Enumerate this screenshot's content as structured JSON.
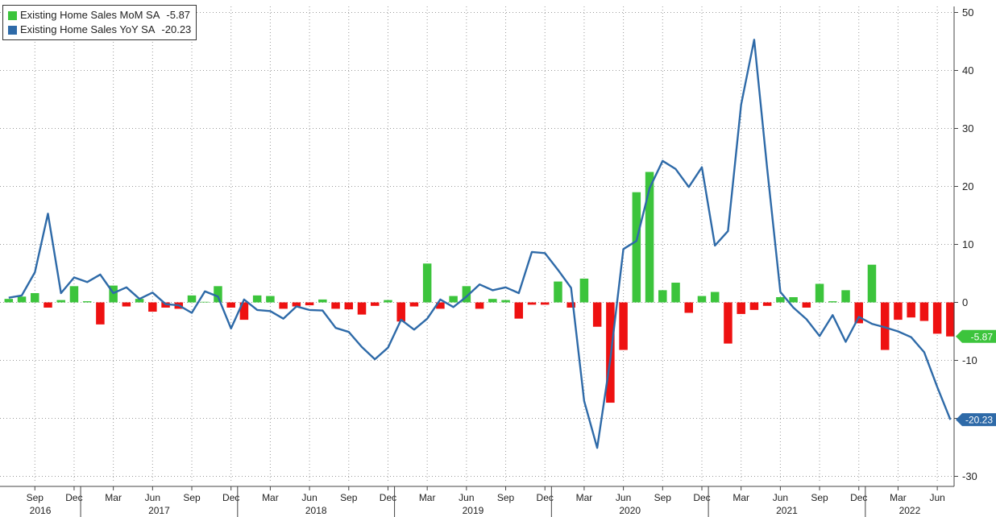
{
  "colors": {
    "mom_positive": "#3cc43c",
    "mom_negative": "#ee1111",
    "yoy_line": "#2e6aa8",
    "grid": "#9a9a9a",
    "axis": "#444444",
    "mom_label_bg": "#3cc43c",
    "yoy_label_bg": "#2e6aa8"
  },
  "legend": {
    "items": [
      {
        "name": "Existing Home Sales MoM SA",
        "value": "-5.87",
        "color": "#3cc43c"
      },
      {
        "name": "Existing Home Sales YoY SA",
        "value": "-20.23",
        "color": "#2e6aa8"
      }
    ]
  },
  "last_value_labels": {
    "mom": "-5.87",
    "yoy": "-20.23"
  },
  "chart_data": {
    "type": "bar",
    "combo": "bar + line",
    "x_start": "2016-07",
    "x_end": "2022-07",
    "x_months": [
      "2016-07",
      "2016-08",
      "2016-09",
      "2016-10",
      "2016-11",
      "2016-12",
      "2017-01",
      "2017-02",
      "2017-03",
      "2017-04",
      "2017-05",
      "2017-06",
      "2017-07",
      "2017-08",
      "2017-09",
      "2017-10",
      "2017-11",
      "2017-12",
      "2018-01",
      "2018-02",
      "2018-03",
      "2018-04",
      "2018-05",
      "2018-06",
      "2018-07",
      "2018-08",
      "2018-09",
      "2018-10",
      "2018-11",
      "2018-12",
      "2019-01",
      "2019-02",
      "2019-03",
      "2019-04",
      "2019-05",
      "2019-06",
      "2019-07",
      "2019-08",
      "2019-09",
      "2019-10",
      "2019-11",
      "2019-12",
      "2020-01",
      "2020-02",
      "2020-03",
      "2020-04",
      "2020-05",
      "2020-06",
      "2020-07",
      "2020-08",
      "2020-09",
      "2020-10",
      "2020-11",
      "2020-12",
      "2021-01",
      "2021-02",
      "2021-03",
      "2021-04",
      "2021-05",
      "2021-06",
      "2021-07",
      "2021-08",
      "2021-09",
      "2021-10",
      "2021-11",
      "2021-12",
      "2022-01",
      "2022-02",
      "2022-03",
      "2022-04",
      "2022-05",
      "2022-06",
      "2022-07"
    ],
    "series": [
      {
        "name": "Existing Home Sales MoM SA",
        "kind": "bar",
        "values": [
          0.6,
          1.0,
          1.6,
          -0.9,
          0.4,
          2.8,
          0.2,
          -3.8,
          2.9,
          -0.7,
          0.6,
          -1.6,
          -0.9,
          -1.1,
          1.2,
          0.1,
          2.8,
          -0.9,
          -3.0,
          1.2,
          1.1,
          -1.1,
          -0.7,
          -0.5,
          0.5,
          -1.1,
          -1.2,
          -2.1,
          -0.6,
          0.4,
          -3.3,
          -0.7,
          6.7,
          -1.1,
          1.1,
          2.8,
          -1.1,
          0.6,
          0.4,
          -2.8,
          -0.4,
          -0.4,
          3.6,
          -0.9,
          4.1,
          -4.2,
          -17.3,
          -8.2,
          19.0,
          22.5,
          2.1,
          3.4,
          -1.8,
          1.1,
          1.8,
          -7.1,
          -2.0,
          -1.3,
          -0.6,
          0.9,
          0.9,
          -0.9,
          3.2,
          0.2,
          2.1,
          -3.6,
          6.5,
          -8.2,
          -3.0,
          -2.6,
          -3.2,
          -5.4,
          -5.87
        ]
      },
      {
        "name": "Existing Home Sales YoY SA",
        "kind": "line",
        "values": [
          0.8,
          1.2,
          5.2,
          15.3,
          1.6,
          4.3,
          3.5,
          4.8,
          1.6,
          2.6,
          0.6,
          1.7,
          -0.3,
          -0.5,
          -1.8,
          1.9,
          1.0,
          -4.5,
          0.5,
          -1.3,
          -1.5,
          -2.8,
          -0.7,
          -1.3,
          -1.4,
          -4.4,
          -5.1,
          -7.7,
          -9.8,
          -7.8,
          -3.0,
          -4.7,
          -2.8,
          0.5,
          -0.8,
          1.0,
          3.1,
          2.1,
          2.6,
          1.6,
          8.7,
          8.5,
          5.6,
          2.5,
          -17.0,
          -25.1,
          -9.8,
          9.2,
          10.6,
          19.7,
          24.4,
          23.0,
          19.9,
          23.3,
          9.8,
          12.3,
          34.1,
          45.3,
          23.0,
          1.8,
          -0.9,
          -2.9,
          -5.8,
          -2.2,
          -6.8,
          -2.5,
          -3.7,
          -4.3,
          -5.0,
          -6.0,
          -8.6,
          -14.6,
          -20.23
        ]
      }
    ],
    "y_axis": {
      "ylim": [
        -30,
        50
      ],
      "ticks": [
        50,
        40,
        30,
        20,
        10,
        0,
        -10,
        -20,
        -30
      ],
      "position": "right"
    },
    "x_axis": {
      "month_ticks": [
        {
          "date": "2016-09",
          "label": "Sep"
        },
        {
          "date": "2016-12",
          "label": "Dec"
        },
        {
          "date": "2017-03",
          "label": "Mar"
        },
        {
          "date": "2017-06",
          "label": "Jun"
        },
        {
          "date": "2017-09",
          "label": "Sep"
        },
        {
          "date": "2017-12",
          "label": "Dec"
        },
        {
          "date": "2018-03",
          "label": "Mar"
        },
        {
          "date": "2018-06",
          "label": "Jun"
        },
        {
          "date": "2018-09",
          "label": "Sep"
        },
        {
          "date": "2018-12",
          "label": "Dec"
        },
        {
          "date": "2019-03",
          "label": "Mar"
        },
        {
          "date": "2019-06",
          "label": "Jun"
        },
        {
          "date": "2019-09",
          "label": "Sep"
        },
        {
          "date": "2019-12",
          "label": "Dec"
        },
        {
          "date": "2020-03",
          "label": "Mar"
        },
        {
          "date": "2020-06",
          "label": "Jun"
        },
        {
          "date": "2020-09",
          "label": "Sep"
        },
        {
          "date": "2020-12",
          "label": "Dec"
        },
        {
          "date": "2021-03",
          "label": "Mar"
        },
        {
          "date": "2021-06",
          "label": "Jun"
        },
        {
          "date": "2021-09",
          "label": "Sep"
        },
        {
          "date": "2021-12",
          "label": "Dec"
        },
        {
          "date": "2022-03",
          "label": "Mar"
        },
        {
          "date": "2022-06",
          "label": "Jun"
        }
      ],
      "year_labels": [
        {
          "label": "2016",
          "start": "2016-07",
          "end": "2016-12"
        },
        {
          "label": "2017",
          "start": "2017-01",
          "end": "2017-12"
        },
        {
          "label": "2018",
          "start": "2018-01",
          "end": "2018-12"
        },
        {
          "label": "2019",
          "start": "2019-01",
          "end": "2019-12"
        },
        {
          "label": "2020",
          "start": "2020-01",
          "end": "2020-12"
        },
        {
          "label": "2021",
          "start": "2021-01",
          "end": "2021-12"
        },
        {
          "label": "2022",
          "start": "2022-01",
          "end": "2022-07"
        }
      ]
    },
    "grid": true,
    "legend_position": "top-left"
  }
}
